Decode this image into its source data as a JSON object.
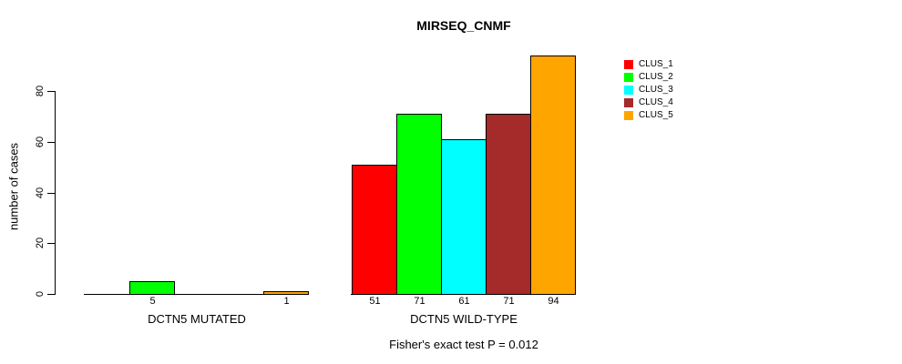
{
  "chart_data": {
    "type": "bar",
    "title": "MIRSEQ_CNMF",
    "ylabel": "number of cases",
    "xlabel": "",
    "ylim": [
      0,
      80
    ],
    "yticks": [
      0,
      20,
      40,
      60,
      80
    ],
    "grid": false,
    "legend_position": "right",
    "series": [
      {
        "name": "CLUS_1",
        "color": "#FF0000"
      },
      {
        "name": "CLUS_2",
        "color": "#00FF00"
      },
      {
        "name": "CLUS_3",
        "color": "#00FFFF"
      },
      {
        "name": "CLUS_4",
        "color": "#A52A2A"
      },
      {
        "name": "CLUS_5",
        "color": "#FFA500"
      }
    ],
    "groups": [
      {
        "label": "DCTN5 MUTATED",
        "values": [
          0,
          5,
          0,
          0,
          1
        ]
      },
      {
        "label": "DCTN5 WILD-TYPE",
        "values": [
          51,
          71,
          61,
          71,
          94
        ]
      }
    ],
    "footnote": "Fisher's exact test P = 0.012"
  }
}
